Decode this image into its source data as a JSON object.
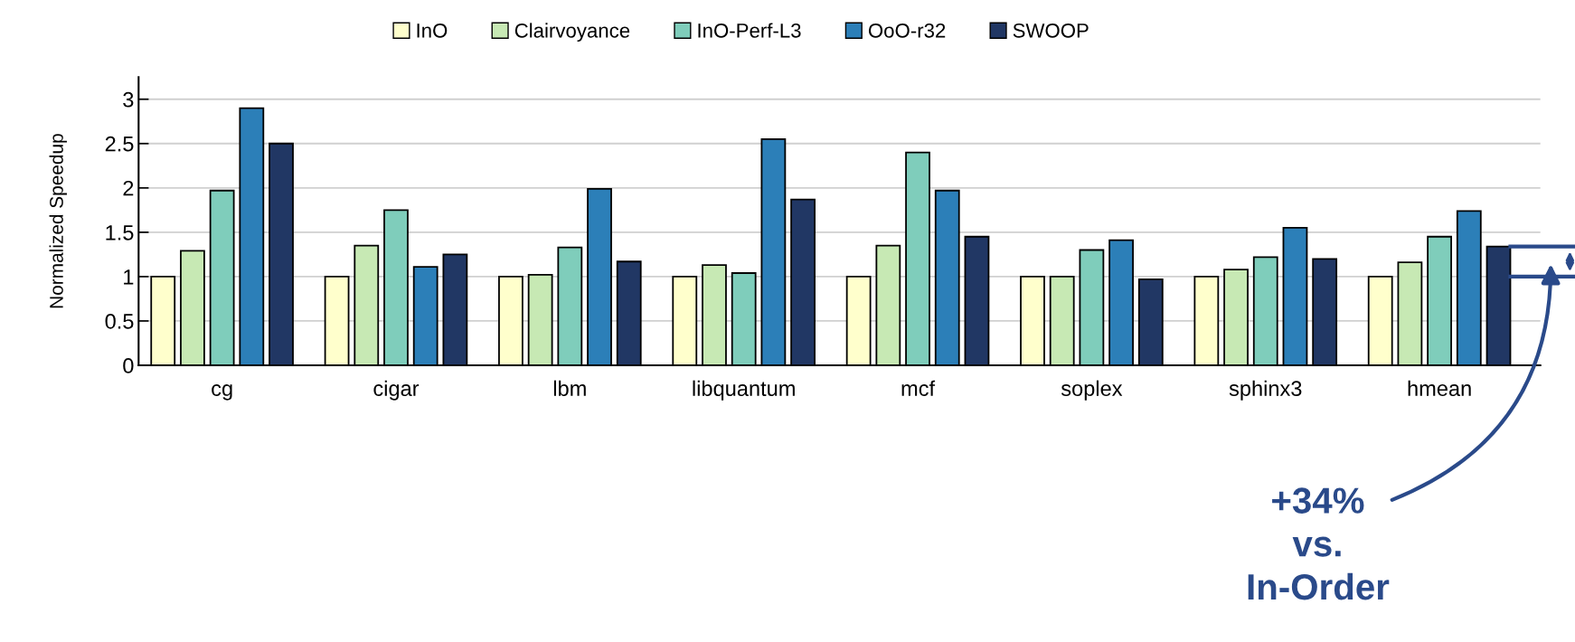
{
  "chart_data": {
    "type": "bar",
    "ylabel": "Normalized Speedup",
    "categories": [
      "cg",
      "cigar",
      "lbm",
      "libquantum",
      "mcf",
      "soplex",
      "sphinx3",
      "hmean"
    ],
    "series": [
      {
        "name": "InO",
        "color": "#ffffcc",
        "values": [
          1,
          1,
          1,
          1,
          1,
          1,
          1,
          1
        ]
      },
      {
        "name": "Clairvoyance",
        "color": "#c7e9b4",
        "values": [
          1.29,
          1.35,
          1.02,
          1.13,
          1.35,
          1.0,
          1.08,
          1.16
        ]
      },
      {
        "name": "InO-Perf-L3",
        "color": "#7fcdbb",
        "values": [
          1.97,
          1.75,
          1.33,
          1.04,
          2.4,
          1.3,
          1.22,
          1.45
        ]
      },
      {
        "name": "OoO-r32",
        "color": "#2c7fb8",
        "values": [
          2.9,
          1.11,
          1.99,
          2.55,
          1.97,
          1.41,
          1.55,
          1.74
        ]
      },
      {
        "name": "SWOOP",
        "color": "#213764",
        "values": [
          2.5,
          1.25,
          1.17,
          1.87,
          1.45,
          0.97,
          1.2,
          1.34
        ]
      }
    ],
    "ylim": [
      0,
      3.25
    ],
    "yticks": [
      0,
      0.5,
      1,
      1.5,
      2,
      2.5,
      3
    ],
    "grid": "y",
    "legend": "top",
    "annotations": [
      "+34%\nvs.\nIn-Order"
    ]
  }
}
